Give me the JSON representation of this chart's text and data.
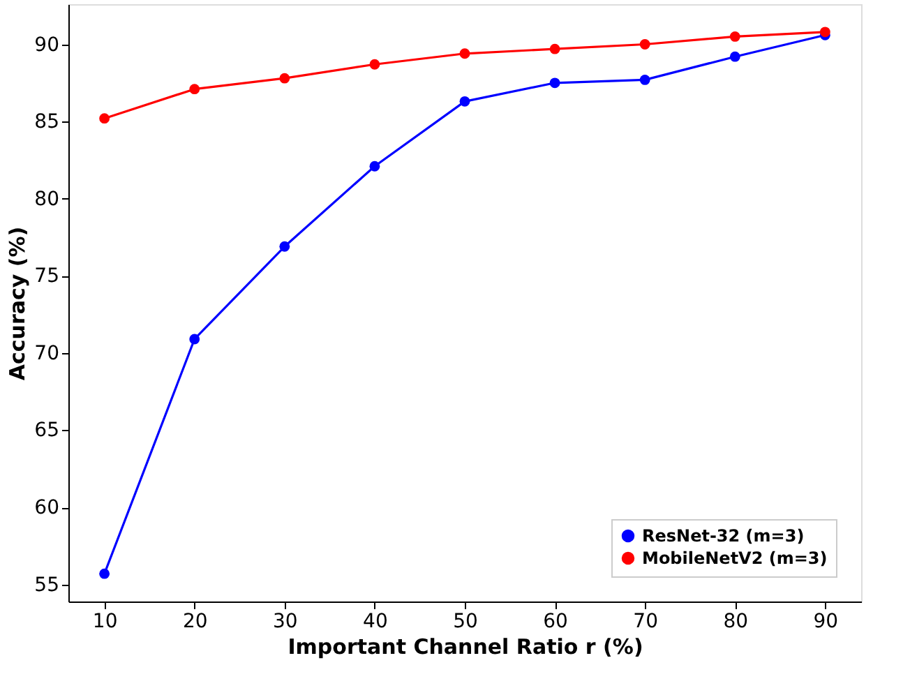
{
  "chart_data": {
    "type": "line",
    "xlabel": "Important Channel Ratio r (%)",
    "ylabel": "Accuracy (%)",
    "x": [
      10,
      20,
      30,
      40,
      50,
      60,
      70,
      80,
      90
    ],
    "series": [
      {
        "name": "ResNet-32 (m=3)",
        "color": "#0000ff",
        "values": [
          55.7,
          70.9,
          76.9,
          82.1,
          86.3,
          87.5,
          87.7,
          89.2,
          90.6
        ]
      },
      {
        "name": "MobileNetV2 (m=3)",
        "color": "#ff0000",
        "values": [
          85.2,
          87.1,
          87.8,
          88.7,
          89.4,
          89.7,
          90.0,
          90.5,
          90.8
        ]
      }
    ],
    "xlim": [
      6,
      94
    ],
    "xticks": [
      10,
      20,
      30,
      40,
      50,
      60,
      70,
      80,
      90
    ],
    "ylim": [
      53.9,
      92.6
    ],
    "yticks": [
      55,
      60,
      65,
      70,
      75,
      80,
      85,
      90
    ],
    "grid": false,
    "legend": "bottom right",
    "marker": "circle",
    "line_style": "solid"
  }
}
